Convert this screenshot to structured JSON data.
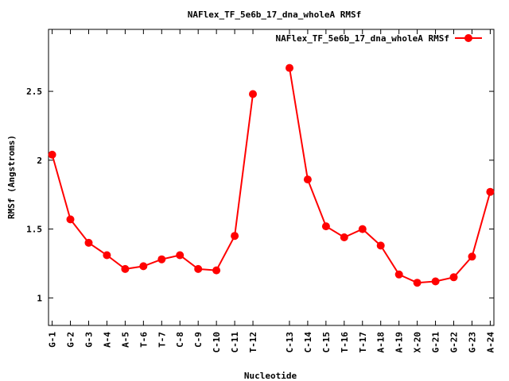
{
  "chart_data": {
    "type": "line",
    "title": "NAFlex_TF_5e6b_17_dna_wholeA RMSf",
    "xlabel": "Nucleotide",
    "ylabel": "RMSf (Angstroms)",
    "ylim": [
      0.8,
      2.95
    ],
    "yticks": [
      1,
      1.5,
      2,
      2.5
    ],
    "ytick_labels": [
      "1",
      "1.5",
      "2",
      "2.5"
    ],
    "x_range": [
      0.8,
      24.2
    ],
    "legend": {
      "position": "top-right",
      "label": "NAFlex_TF_5e6b_17_dna_wholeA RMSf"
    },
    "grid": false,
    "color": "#ff0000",
    "categories": [
      {
        "label": "G-1",
        "x": 1
      },
      {
        "label": "G-2",
        "x": 2
      },
      {
        "label": "G-3",
        "x": 3
      },
      {
        "label": "A-4",
        "x": 4
      },
      {
        "label": "A-5",
        "x": 5
      },
      {
        "label": "T-6",
        "x": 6
      },
      {
        "label": "T-7",
        "x": 7
      },
      {
        "label": "C-8",
        "x": 8
      },
      {
        "label": "C-9",
        "x": 9
      },
      {
        "label": "C-10",
        "x": 10
      },
      {
        "label": "C-11",
        "x": 11
      },
      {
        "label": "T-12",
        "x": 12
      },
      {
        "label": "C-13",
        "x": 14
      },
      {
        "label": "C-14",
        "x": 15
      },
      {
        "label": "C-15",
        "x": 16
      },
      {
        "label": "T-16",
        "x": 17
      },
      {
        "label": "T-17",
        "x": 18
      },
      {
        "label": "A-18",
        "x": 19
      },
      {
        "label": "A-19",
        "x": 20
      },
      {
        "label": "X-20",
        "x": 21
      },
      {
        "label": "G-21",
        "x": 22
      },
      {
        "label": "G-22",
        "x": 23
      },
      {
        "label": "G-23",
        "x": 24
      },
      {
        "label": "A-24",
        "x": 25
      }
    ],
    "series": [
      {
        "name": "NAFlex_TF_5e6b_17_dna_wholeA RMSf",
        "segments": [
          [
            [
              1,
              2.04
            ],
            [
              2,
              1.57
            ],
            [
              3,
              1.4
            ],
            [
              4,
              1.31
            ],
            [
              5,
              1.21
            ],
            [
              6,
              1.23
            ],
            [
              7,
              1.28
            ],
            [
              8,
              1.31
            ],
            [
              9,
              1.21
            ],
            [
              10,
              1.2
            ],
            [
              11,
              1.45
            ],
            [
              12,
              2.48
            ]
          ],
          [
            [
              14,
              2.67
            ],
            [
              15,
              1.86
            ],
            [
              16,
              1.52
            ],
            [
              17,
              1.44
            ],
            [
              18,
              1.5
            ],
            [
              19,
              1.38
            ],
            [
              20,
              1.17
            ],
            [
              21,
              1.11
            ],
            [
              22,
              1.12
            ],
            [
              23,
              1.15
            ],
            [
              24,
              1.3
            ],
            [
              25,
              1.77
            ]
          ]
        ]
      }
    ]
  }
}
